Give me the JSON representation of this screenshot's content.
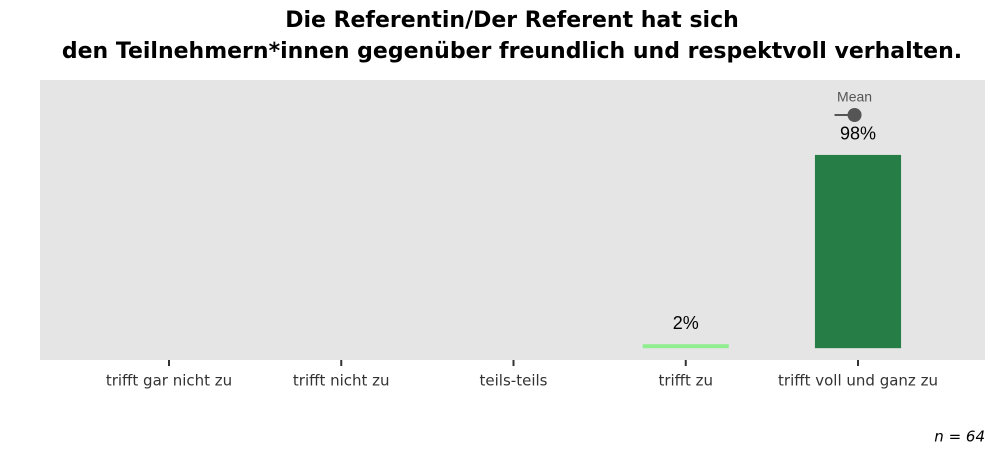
{
  "chart_data": {
    "type": "bar",
    "title": [
      "Die Referentin/Der Referent hat sich",
      "den Teilnehmern*innen gegenüber freundlich und respektvoll verhalten."
    ],
    "categories": [
      "trifft gar nicht zu",
      "trifft nicht zu",
      "teils-teils",
      "trifft zu",
      "trifft voll und ganz zu"
    ],
    "values": [
      0,
      0,
      0,
      2,
      98
    ],
    "value_labels": [
      null,
      null,
      null,
      "2%",
      "98%"
    ],
    "colors": [
      "#d9f0d3",
      "#a6dba0",
      "#74c476",
      "#90ee90",
      "#267d46"
    ],
    "ylim": [
      -6,
      136
    ],
    "mean": {
      "label": "Mean",
      "value": 4.98
    },
    "note": "n = 64"
  }
}
